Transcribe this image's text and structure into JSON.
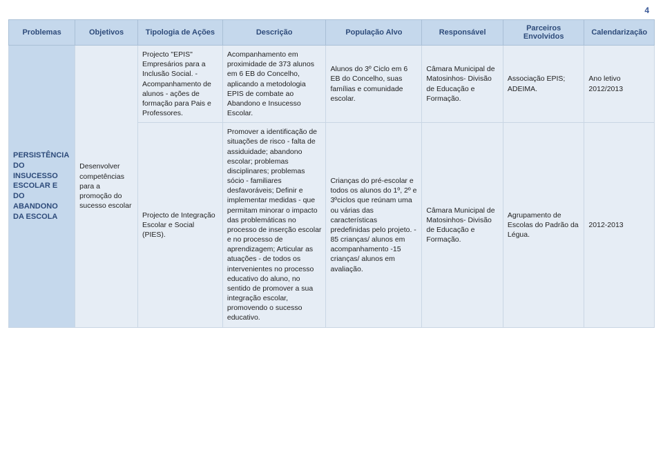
{
  "page_number": "4",
  "headers": {
    "problemas": "Problemas",
    "objetivos": "Objetivos",
    "tipologia": "Tipologia de Ações",
    "descricao": "Descrição",
    "populacao": "População Alvo",
    "responsavel": "Responsável",
    "parceiros": "Parceiros Envolvidos",
    "calendarizacao": "Calendarização"
  },
  "row_header": {
    "problemas": "PERSISTÊNCIA DO INSUCESSO ESCOLAR E DO ABANDONO DA ESCOLA",
    "objetivos": "Desenvolver competências para a promoção do sucesso escolar"
  },
  "rows": [
    {
      "tipologia": "Projecto \"EPIS\" Empresários para a Inclusão Social.\n -Acompanhamento de alunos\n- ações de formação para Pais e Professores.",
      "descricao": "Acompanhamento em proximidade de 373 alunos em 6 EB do Concelho, aplicando a metodologia EPIS de combate ao Abandono e Insucesso Escolar.",
      "populacao": "Alunos do 3º Ciclo em 6 EB do Concelho,  suas famílias e comunidade escolar.",
      "responsavel": "Câmara Municipal de Matosinhos- Divisão de Educação e Formação.",
      "parceiros": "Associação EPIS; ADEIMA.",
      "calendarizacao": "Ano letivo 2012/2013"
    },
    {
      "tipologia": "Projecto de Integração Escolar e Social (PIES).",
      "descricao": "Promover a identificação de situações de risco - falta de assiduidade; abandono escolar; problemas disciplinares; problemas sócio - familiares desfavoráveis; Definir e implementar medidas - que permitam minorar o impacto das problemáticas no processo de inserção escolar e no processo de aprendizagem; Articular as atuações - de todos os intervenientes no processo educativo do aluno, no sentido de promover a sua integração escolar, promovendo o sucesso educativo.",
      "populacao": "Crianças do pré-escolar e todos os alunos do 1º, 2º e 3ºciclos que reúnam uma ou várias das características predefinidas pelo projeto.\n - 85 crianças/ alunos em acompanhamento\n-15 crianças/ alunos em avaliação.",
      "responsavel": "Câmara Municipal de Matosinhos- Divisão de Educação e Formação.",
      "parceiros": "Agrupamento de Escolas do Padrão da Légua.",
      "calendarizacao": "2012-2013"
    }
  ],
  "colors": {
    "header_bg": "#c5d8ec",
    "header_fg": "#2e4b7a",
    "row_bg": "#e6edf5",
    "border": "#c9d6e4"
  }
}
